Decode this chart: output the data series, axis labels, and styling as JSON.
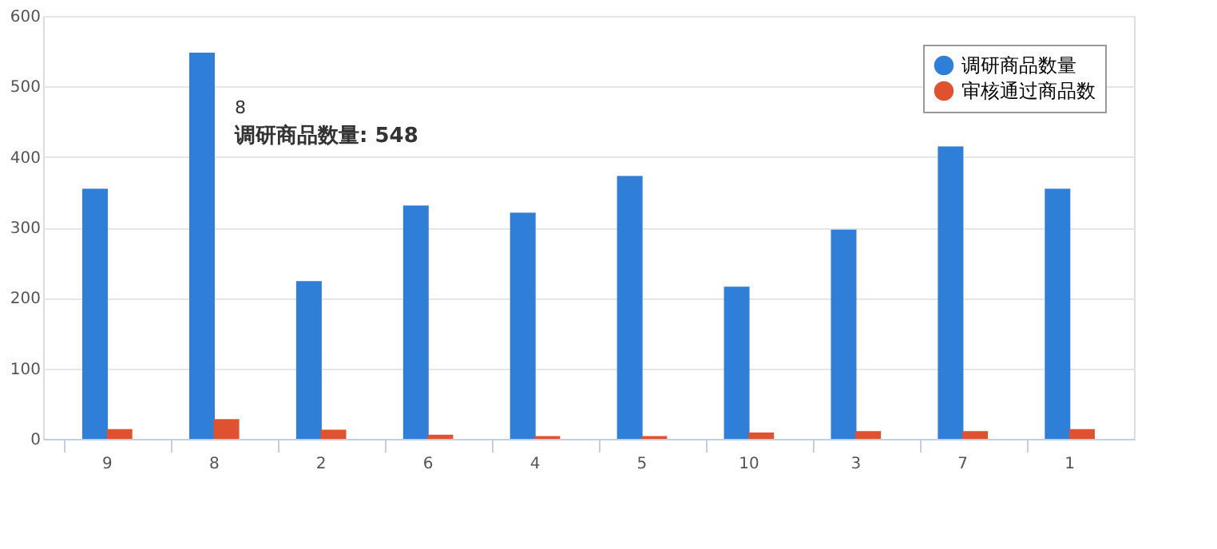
{
  "chart_data": {
    "type": "bar",
    "categories": [
      "9",
      "8",
      "2",
      "6",
      "4",
      "5",
      "10",
      "3",
      "7",
      "1"
    ],
    "series": [
      {
        "name": "调研商品数量",
        "color": "#2f7ed8",
        "values": [
          355,
          548,
          224,
          331,
          321,
          373,
          216,
          297,
          415,
          355
        ]
      },
      {
        "name": "审核通过商品数",
        "color": "#e0522f",
        "values": [
          14,
          28,
          13,
          6,
          4,
          4,
          9,
          11,
          11,
          14
        ]
      }
    ],
    "ylim": [
      0,
      600
    ],
    "yticks": [
      0,
      100,
      200,
      300,
      400,
      500,
      600
    ],
    "grid": "y",
    "legend": "top right",
    "annotations": [
      "8",
      "调研商品数量: 548"
    ]
  }
}
